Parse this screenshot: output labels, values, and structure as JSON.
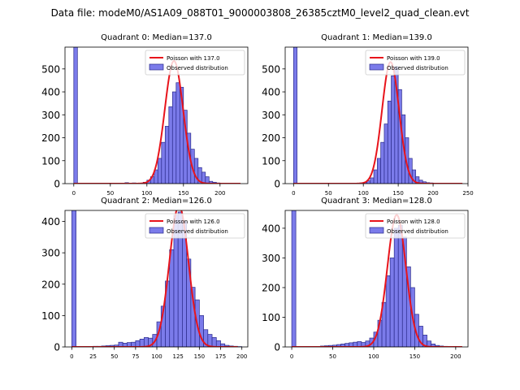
{
  "figure": {
    "title": "Data file: modeM0/AS1A09_088T01_9000003808_26385cztM0_level2_quad_clean.evt"
  },
  "colors": {
    "bar_fill": "#7b7bea",
    "bar_edge": "#2a2a8a",
    "fit_line": "#e8141b"
  },
  "chart_data": [
    {
      "type": "bar",
      "title": "Quadrant 0: Median=137.0",
      "xlabel": "",
      "ylabel": "",
      "xlim": [
        -12,
        238
      ],
      "ylim": [
        0,
        595
      ],
      "xticks": [
        0,
        50,
        100,
        150,
        200
      ],
      "yticks": [
        0,
        100,
        200,
        300,
        400,
        500
      ],
      "bin_width": 5,
      "bins": [
        [
          0,
          595
        ],
        [
          70,
          4
        ],
        [
          80,
          3
        ],
        [
          85,
          2
        ],
        [
          95,
          6
        ],
        [
          100,
          15
        ],
        [
          105,
          30
        ],
        [
          110,
          60
        ],
        [
          115,
          110
        ],
        [
          120,
          180
        ],
        [
          125,
          250
        ],
        [
          130,
          335
        ],
        [
          135,
          400
        ],
        [
          140,
          440
        ],
        [
          145,
          420
        ],
        [
          150,
          320
        ],
        [
          155,
          220
        ],
        [
          160,
          150
        ],
        [
          165,
          110
        ],
        [
          170,
          70
        ],
        [
          175,
          50
        ],
        [
          180,
          30
        ],
        [
          185,
          10
        ],
        [
          190,
          6
        ],
        [
          195,
          3
        ],
        [
          200,
          2
        ]
      ],
      "fit": {
        "mu": 137.0,
        "peak": 535,
        "sigma": 12.5,
        "x_range": [
          0,
          228
        ]
      },
      "legend": [
        "Poisson with 137.0",
        "Observed distribution"
      ],
      "legend_loc": "upper right"
    },
    {
      "type": "bar",
      "title": "Quadrant 1: Median=139.0",
      "xlabel": "",
      "ylabel": "",
      "xlim": [
        -12,
        250
      ],
      "ylim": [
        0,
        595
      ],
      "xticks": [
        0,
        50,
        100,
        150,
        200,
        250
      ],
      "yticks": [
        0,
        100,
        200,
        300,
        400,
        500
      ],
      "bin_width": 5,
      "bins": [
        [
          0,
          595
        ],
        [
          95,
          3
        ],
        [
          100,
          6
        ],
        [
          105,
          12
        ],
        [
          110,
          25
        ],
        [
          115,
          60
        ],
        [
          120,
          110
        ],
        [
          125,
          180
        ],
        [
          130,
          260
        ],
        [
          135,
          360
        ],
        [
          140,
          470
        ],
        [
          145,
          510
        ],
        [
          150,
          410
        ],
        [
          155,
          300
        ],
        [
          160,
          200
        ],
        [
          165,
          110
        ],
        [
          170,
          60
        ],
        [
          175,
          30
        ],
        [
          180,
          15
        ],
        [
          185,
          8
        ],
        [
          190,
          4
        ],
        [
          195,
          3
        ],
        [
          200,
          2
        ]
      ],
      "fit": {
        "mu": 139.0,
        "peak": 530,
        "sigma": 12.2,
        "x_range": [
          0,
          242
        ]
      },
      "legend": [
        "Poisson with 139.0",
        "Observed distribution"
      ],
      "legend_loc": "upper right"
    },
    {
      "type": "bar",
      "title": "Quadrant 2: Median=126.0",
      "xlabel": "",
      "ylabel": "",
      "xlim": [
        -8,
        207
      ],
      "ylim": [
        0,
        435
      ],
      "xticks": [
        0,
        25,
        50,
        75,
        100,
        125,
        150,
        175,
        200
      ],
      "yticks": [
        0,
        100,
        200,
        300,
        400
      ],
      "bin_width": 5,
      "bins": [
        [
          0,
          435
        ],
        [
          20,
          1
        ],
        [
          25,
          2
        ],
        [
          30,
          2
        ],
        [
          35,
          3
        ],
        [
          40,
          4
        ],
        [
          45,
          5
        ],
        [
          50,
          6
        ],
        [
          55,
          15
        ],
        [
          60,
          12
        ],
        [
          65,
          14
        ],
        [
          70,
          15
        ],
        [
          75,
          20
        ],
        [
          80,
          25
        ],
        [
          85,
          30
        ],
        [
          90,
          28
        ],
        [
          95,
          40
        ],
        [
          100,
          80
        ],
        [
          105,
          130
        ],
        [
          110,
          210
        ],
        [
          115,
          310
        ],
        [
          120,
          420
        ],
        [
          125,
          430
        ],
        [
          130,
          400
        ],
        [
          135,
          280
        ],
        [
          140,
          190
        ],
        [
          145,
          150
        ],
        [
          150,
          100
        ],
        [
          155,
          55
        ],
        [
          160,
          40
        ],
        [
          165,
          30
        ],
        [
          170,
          20
        ],
        [
          175,
          10
        ],
        [
          180,
          5
        ],
        [
          185,
          3
        ],
        [
          190,
          2
        ],
        [
          195,
          1
        ]
      ],
      "fit": {
        "mu": 126.0,
        "peak": 450,
        "sigma": 11.2,
        "x_range": [
          0,
          195
        ]
      },
      "legend": [
        "Poisson with 126.0",
        "Observed distribution"
      ],
      "legend_loc": "upper right"
    },
    {
      "type": "bar",
      "title": "Quadrant 3: Median=128.0",
      "xlabel": "",
      "ylabel": "",
      "xlim": [
        -8,
        215
      ],
      "ylim": [
        0,
        460
      ],
      "xticks": [
        0,
        50,
        100,
        150,
        200
      ],
      "yticks": [
        0,
        100,
        200,
        300,
        400
      ],
      "bin_width": 5,
      "bins": [
        [
          0,
          460
        ],
        [
          35,
          3
        ],
        [
          40,
          4
        ],
        [
          45,
          5
        ],
        [
          50,
          6
        ],
        [
          55,
          8
        ],
        [
          60,
          10
        ],
        [
          65,
          12
        ],
        [
          70,
          14
        ],
        [
          75,
          16
        ],
        [
          80,
          18
        ],
        [
          85,
          15
        ],
        [
          90,
          20
        ],
        [
          95,
          30
        ],
        [
          100,
          50
        ],
        [
          105,
          90
        ],
        [
          110,
          150
        ],
        [
          115,
          240
        ],
        [
          120,
          300
        ],
        [
          125,
          400
        ],
        [
          130,
          410
        ],
        [
          135,
          370
        ],
        [
          140,
          270
        ],
        [
          145,
          200
        ],
        [
          150,
          110
        ],
        [
          155,
          70
        ],
        [
          160,
          40
        ],
        [
          165,
          20
        ],
        [
          170,
          10
        ],
        [
          175,
          5
        ],
        [
          180,
          3
        ],
        [
          185,
          2
        ],
        [
          190,
          1
        ]
      ],
      "fit": {
        "mu": 128.0,
        "peak": 445,
        "sigma": 11.3,
        "x_range": [
          0,
          208
        ]
      },
      "legend": [
        "Poisson with 128.0",
        "Observed distribution"
      ],
      "legend_loc": "upper right"
    }
  ]
}
